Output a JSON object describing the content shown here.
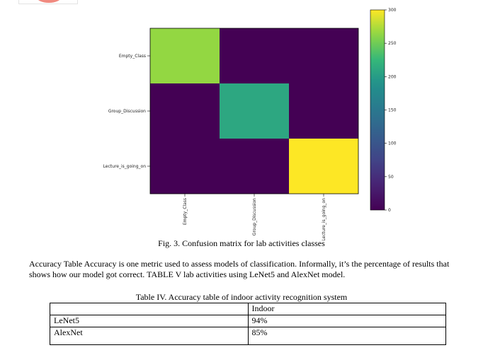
{
  "chart_data": {
    "type": "heatmap",
    "row_labels": [
      "Empty_Class",
      "Group_Discussion",
      "Lecture_is_going_on"
    ],
    "col_labels": [
      "Empty_Class",
      "Group_Discussion",
      "Lecture_is_going_on"
    ],
    "values": [
      [
        265,
        0,
        0
      ],
      [
        0,
        210,
        0
      ],
      [
        0,
        0,
        300
      ]
    ],
    "colorbar": {
      "min": 0,
      "max": 300,
      "ticks": [
        "0",
        "50",
        "100",
        "150",
        "200",
        "250",
        "300"
      ]
    },
    "colormap": "viridis"
  },
  "figure_caption": "Fig. 3. Confusion matrix for lab activities classes",
  "paragraph": "Accuracy Table Accuracy is one metric used to assess models of classification. Informally, it’s the percentage of results that shows how our model got correct. TABLE V lab  activities using LeNet5 and AlexNet model.",
  "table": {
    "title": "Table IV. Accuracy table of indoor activity recognition system",
    "header": [
      "",
      "Indoor"
    ],
    "rows": [
      [
        "LeNet5",
        "94%"
      ],
      [
        "AlexNet",
        "85%"
      ]
    ]
  }
}
